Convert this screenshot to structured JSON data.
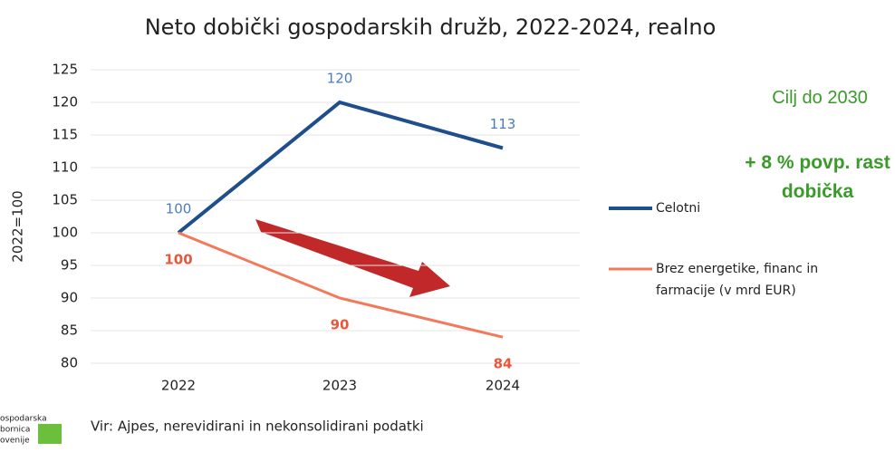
{
  "chart_data": {
    "type": "line",
    "title": "Neto dobički gospodarskih družb, 2022-2024, realno",
    "y_label": "2022=100",
    "categories": [
      "2022",
      "2023",
      "2024"
    ],
    "series": [
      {
        "name": "Celotni",
        "color": "#1f4e8c",
        "label_color": "#4a7bc4",
        "values": [
          100,
          120,
          113
        ]
      },
      {
        "name": "Brez energetike, financ in farmacije (v mrd EUR)",
        "color": "#f07a5a",
        "label_color": "#e8573a",
        "values": [
          100,
          90,
          84
        ]
      }
    ],
    "ylim": [
      80,
      125
    ],
    "yticks": [
      80,
      85,
      90,
      95,
      100,
      105,
      110,
      115,
      120,
      125
    ],
    "grid": true,
    "annotations": [
      "Cilj do 2030",
      "+ 8 % povp. rast dobička"
    ],
    "source": "Vir: Ajpes, nerevidirani in nekonsolidirani podatki",
    "logo": [
      "ospodarska",
      "bornica",
      "ovenije"
    ]
  }
}
